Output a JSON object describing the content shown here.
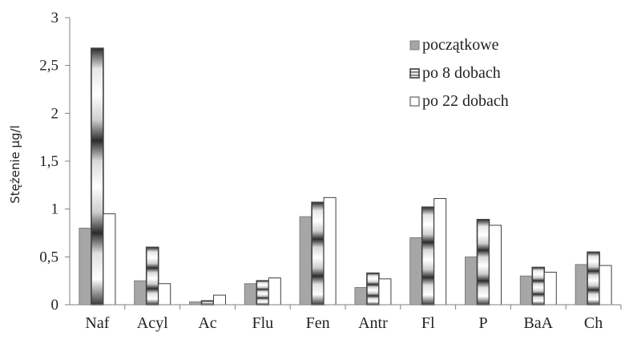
{
  "chart_data": {
    "type": "bar",
    "categories": [
      "Naf",
      "Acyl",
      "Ac",
      "Flu",
      "Fen",
      "Antr",
      "Fl",
      "P",
      "BaA",
      "Ch"
    ],
    "series": [
      {
        "name": "początkowe",
        "color": "#a6a6a6",
        "values": [
          0.8,
          0.25,
          0.03,
          0.22,
          0.92,
          0.18,
          0.7,
          0.5,
          0.3,
          0.42
        ]
      },
      {
        "name": "po 8 dobach",
        "color": "#404040",
        "values": [
          2.68,
          0.6,
          0.04,
          0.25,
          1.07,
          0.33,
          1.02,
          0.89,
          0.39,
          0.55
        ]
      },
      {
        "name": "po 22 dobach",
        "color": "#ffffff",
        "values": [
          0.95,
          0.22,
          0.1,
          0.28,
          1.12,
          0.27,
          1.11,
          0.83,
          0.34,
          0.41
        ]
      }
    ],
    "ylabel": "Stężenie µg/l",
    "ylim": [
      0,
      3
    ],
    "yticks": [
      "0",
      "0,5",
      "1",
      "1,5",
      "2",
      "2,5",
      "3"
    ],
    "grid": false,
    "legend_position": "top-right"
  }
}
